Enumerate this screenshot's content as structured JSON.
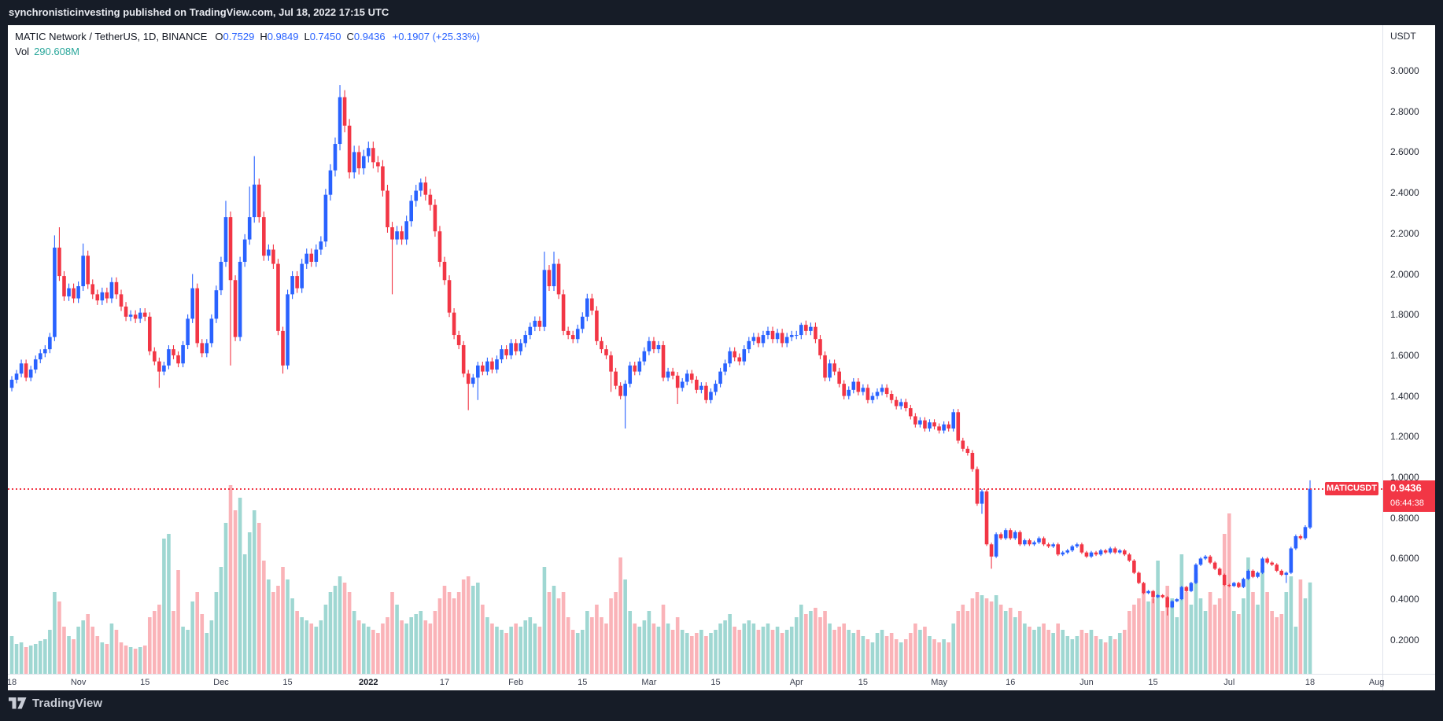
{
  "attribution": {
    "text": "synchronisticinvesting published on TradingView.com, Jul 18, 2022 17:15 UTC"
  },
  "legend": {
    "title": "MATIC Network / TetherUS, 1D, BINANCE",
    "ohlc": [
      {
        "label": "O",
        "value": "0.7529"
      },
      {
        "label": "H",
        "value": "0.9849"
      },
      {
        "label": "L",
        "value": "0.7450"
      },
      {
        "label": "C",
        "value": "0.9436"
      }
    ],
    "change": "+0.1907 (+25.33%)",
    "vol_label": "Vol",
    "vol_value": "290.608M"
  },
  "price_axis": {
    "currency": "USDT",
    "labels": [
      "3.0000",
      "2.8000",
      "2.6000",
      "2.4000",
      "2.2000",
      "2.0000",
      "1.8000",
      "1.6000",
      "1.4000",
      "1.2000",
      "1.0000",
      "0.8000",
      "0.6000",
      "0.4000",
      "0.2000"
    ],
    "top_value": 3.0,
    "step": 0.2
  },
  "price_line": {
    "symbol": "MATICUSDT",
    "price": "0.9436",
    "countdown": "06:44:38",
    "value": 0.9436
  },
  "date_axis": {
    "ticks": [
      {
        "label": "18",
        "day": 0
      },
      {
        "label": "Nov",
        "day": 14
      },
      {
        "label": "15",
        "day": 28
      },
      {
        "label": "Dec",
        "day": 44
      },
      {
        "label": "15",
        "day": 58
      },
      {
        "label": "2022",
        "day": 75,
        "bold": true
      },
      {
        "label": "17",
        "day": 91
      },
      {
        "label": "Feb",
        "day": 106
      },
      {
        "label": "15",
        "day": 120
      },
      {
        "label": "Mar",
        "day": 134
      },
      {
        "label": "15",
        "day": 148
      },
      {
        "label": "Apr",
        "day": 165
      },
      {
        "label": "15",
        "day": 179
      },
      {
        "label": "May",
        "day": 195
      },
      {
        "label": "16",
        "day": 210
      },
      {
        "label": "Jun",
        "day": 226
      },
      {
        "label": "15",
        "day": 240
      },
      {
        "label": "Jul",
        "day": 256
      },
      {
        "label": "18",
        "day": 273
      },
      {
        "label": "Aug",
        "day": 287
      }
    ]
  },
  "footer": {
    "logo_text": "TradingView"
  },
  "colors": {
    "up": "#2962FF",
    "down": "#F23645",
    "vol_up": "rgba(42,167,155,0.45)",
    "vol_down": "rgba(242,54,69,0.38)",
    "accent_red": "#F23645",
    "accent_blue": "#2962FF",
    "vol_legend_teal": "#2AA79B",
    "frame_bg": "#161C27",
    "card_bg": "#FFFFFF"
  },
  "chart_data": {
    "type": "candlestick+volume",
    "symbol": "MATICUSDT",
    "exchange": "BINANCE",
    "interval": "1D",
    "date_range": "2021-10-18 to 2022-07-18",
    "ylabel": "Price (USDT)",
    "y_axis_range_shown": [
      0.2,
      3.0
    ],
    "grid": false,
    "last_price": 0.9436,
    "first_open": 1.44,
    "months": [
      {
        "name": "Oct 2021",
        "closes": [
          1.48,
          1.51,
          1.56,
          1.49,
          1.53,
          1.58,
          1.61,
          1.63,
          1.69,
          2.13,
          1.99,
          1.89,
          1.93,
          1.88
        ],
        "volumes_m": [
          120,
          95,
          100,
          85,
          90,
          95,
          105,
          110,
          140,
          260,
          230,
          150,
          120,
          110
        ]
      },
      {
        "name": "Nov 2021",
        "closes": [
          1.94,
          2.09,
          1.95,
          1.9,
          1.87,
          1.91,
          1.88,
          1.96,
          1.9,
          1.84,
          1.79,
          1.8,
          1.78,
          1.81,
          1.79,
          1.62,
          1.57,
          1.52,
          1.55,
          1.63,
          1.6,
          1.56,
          1.65,
          1.78,
          1.93,
          1.66,
          1.61,
          1.66,
          1.78,
          1.92
        ],
        "volumes_m": [
          150,
          170,
          190,
          150,
          120,
          100,
          95,
          160,
          140,
          100,
          90,
          85,
          80,
          85,
          90,
          180,
          200,
          220,
          430,
          445,
          200,
          330,
          150,
          140,
          230,
          260,
          190,
          130,
          170,
          260
        ]
      },
      {
        "name": "Dec 2021",
        "closes": [
          2.06,
          2.28,
          1.97,
          1.69,
          2.06,
          2.17,
          2.28,
          2.44,
          2.28,
          2.09,
          2.12,
          2.05,
          1.72,
          1.55,
          1.9,
          1.99,
          1.93,
          2.05,
          2.1,
          2.06,
          2.12,
          2.16,
          2.39,
          2.51,
          2.64,
          2.87,
          2.73,
          2.5,
          2.6,
          2.52,
          2.58
        ],
        "volumes_m": [
          340,
          480,
          600,
          520,
          560,
          380,
          450,
          520,
          480,
          360,
          300,
          260,
          280,
          340,
          300,
          240,
          200,
          180,
          170,
          160,
          150,
          170,
          220,
          260,
          280,
          310,
          290,
          260,
          200,
          170,
          160
        ]
      },
      {
        "name": "Jan 2022",
        "closes": [
          2.62,
          2.55,
          2.53,
          2.41,
          2.23,
          2.17,
          2.21,
          2.17,
          2.26,
          2.36,
          2.41,
          2.45,
          2.39,
          2.34,
          2.21,
          2.06,
          1.97,
          1.81,
          1.7,
          1.65,
          1.51,
          1.46,
          1.49,
          1.55,
          1.52,
          1.57,
          1.53,
          1.58,
          1.63,
          1.6,
          1.66
        ],
        "volumes_m": [
          150,
          140,
          130,
          160,
          180,
          260,
          220,
          170,
          160,
          180,
          190,
          200,
          170,
          160,
          200,
          240,
          280,
          260,
          240,
          260,
          300,
          310,
          280,
          290,
          220,
          180,
          160,
          150,
          140,
          130,
          150
        ]
      },
      {
        "name": "Feb 2022",
        "closes": [
          1.62,
          1.66,
          1.7,
          1.74,
          1.77,
          1.74,
          2.02,
          1.94,
          2.05,
          1.9,
          1.72,
          1.7,
          1.68,
          1.73,
          1.79,
          1.88,
          1.82,
          1.67,
          1.63,
          1.6,
          1.52,
          1.45,
          1.4,
          1.46,
          1.55,
          1.52,
          1.57,
          1.62
        ],
        "volumes_m": [
          160,
          150,
          170,
          180,
          160,
          150,
          340,
          260,
          280,
          240,
          260,
          180,
          140,
          130,
          140,
          200,
          180,
          220,
          180,
          160,
          240,
          260,
          370,
          300,
          200,
          160,
          150,
          170
        ]
      },
      {
        "name": "Mar 2022",
        "closes": [
          1.67,
          1.63,
          1.65,
          1.49,
          1.52,
          1.5,
          1.44,
          1.47,
          1.51,
          1.48,
          1.43,
          1.45,
          1.38,
          1.42,
          1.46,
          1.52,
          1.56,
          1.62,
          1.59,
          1.57,
          1.63,
          1.67,
          1.69,
          1.66,
          1.7,
          1.72,
          1.68,
          1.71,
          1.66,
          1.69,
          1.7
        ],
        "volumes_m": [
          200,
          160,
          150,
          220,
          160,
          140,
          180,
          140,
          130,
          120,
          130,
          140,
          120,
          130,
          140,
          160,
          170,
          190,
          150,
          140,
          160,
          170,
          160,
          140,
          150,
          160,
          140,
          150,
          130,
          140,
          150
        ]
      },
      {
        "name": "Apr 2022",
        "closes": [
          1.7,
          1.75,
          1.72,
          1.74,
          1.68,
          1.6,
          1.49,
          1.56,
          1.52,
          1.46,
          1.4,
          1.43,
          1.47,
          1.42,
          1.44,
          1.38,
          1.4,
          1.42,
          1.44,
          1.41,
          1.38,
          1.35,
          1.37,
          1.34,
          1.3,
          1.26,
          1.28,
          1.24,
          1.27,
          1.25
        ],
        "volumes_m": [
          180,
          220,
          190,
          200,
          210,
          180,
          200,
          160,
          140,
          150,
          160,
          140,
          130,
          140,
          120,
          110,
          100,
          130,
          140,
          120,
          130,
          110,
          100,
          110,
          130,
          160,
          140,
          150,
          120,
          110
        ]
      },
      {
        "name": "May 2022",
        "closes": [
          1.23,
          1.26,
          1.24,
          1.32,
          1.18,
          1.14,
          1.12,
          1.04,
          0.87,
          0.93,
          0.67,
          0.61,
          0.72,
          0.7,
          0.74,
          0.7,
          0.73,
          0.67,
          0.69,
          0.67,
          0.68,
          0.7,
          0.67,
          0.66,
          0.67,
          0.62,
          0.63,
          0.64,
          0.66,
          0.67,
          0.63
        ],
        "volumes_m": [
          100,
          110,
          100,
          160,
          200,
          220,
          200,
          240,
          260,
          250,
          240,
          230,
          250,
          220,
          200,
          210,
          180,
          200,
          160,
          150,
          140,
          150,
          160,
          140,
          130,
          160,
          140,
          120,
          110,
          120,
          140
        ]
      },
      {
        "name": "Jun 2022",
        "closes": [
          0.61,
          0.63,
          0.62,
          0.64,
          0.63,
          0.65,
          0.63,
          0.64,
          0.62,
          0.59,
          0.53,
          0.48,
          0.43,
          0.44,
          0.41,
          0.42,
          0.41,
          0.36,
          0.39,
          0.4,
          0.46,
          0.44,
          0.48,
          0.57,
          0.6,
          0.61,
          0.58,
          0.55,
          0.52,
          0.47
        ],
        "volumes_m": [
          130,
          140,
          120,
          110,
          100,
          120,
          110,
          130,
          140,
          200,
          220,
          240,
          260,
          230,
          240,
          360,
          200,
          280,
          240,
          180,
          380,
          260,
          220,
          320,
          240,
          200,
          260,
          220,
          240,
          445
        ]
      },
      {
        "name": "Jul 2022",
        "closes": [
          0.465,
          0.48,
          0.46,
          0.5,
          0.54,
          0.51,
          0.53,
          0.6,
          0.58,
          0.57,
          0.54,
          0.52,
          0.53,
          0.65,
          0.71,
          0.7,
          0.755,
          0.9436
        ],
        "volumes_m": [
          510,
          200,
          190,
          240,
          370,
          260,
          220,
          340,
          260,
          200,
          180,
          190,
          260,
          310,
          150,
          300,
          240,
          290.608
        ]
      }
    ],
    "wick_overrides": {
      "9": {
        "h": 2.19
      },
      "10": {
        "h": 2.23
      },
      "15": {
        "h": 2.15
      },
      "31": {
        "l": 1.44
      },
      "38": {
        "h": 2.0
      },
      "45": {
        "h": 2.36
      },
      "46": {
        "l": 1.55
      },
      "50": {
        "h": 2.43
      },
      "51": {
        "h": 2.58
      },
      "57": {
        "l": 1.51
      },
      "69": {
        "h": 2.93
      },
      "80": {
        "l": 1.9
      },
      "86": {
        "h": 2.47
      },
      "96": {
        "l": 1.33
      },
      "98": {
        "l": 1.38
      },
      "112": {
        "h": 2.11
      },
      "114": {
        "h": 2.11
      },
      "126": {
        "l": 1.42
      },
      "129": {
        "l": 1.24
      },
      "140": {
        "l": 1.36
      },
      "166": {
        "h": 1.76
      },
      "204": {
        "l": 0.82
      },
      "206": {
        "l": 0.55
      },
      "240": {
        "l": 0.38
      },
      "243": {
        "l": 0.32
      },
      "268": {
        "l": 0.48
      },
      "273": {
        "o": 0.7529,
        "h": 0.9849,
        "l": 0.745
      }
    }
  }
}
